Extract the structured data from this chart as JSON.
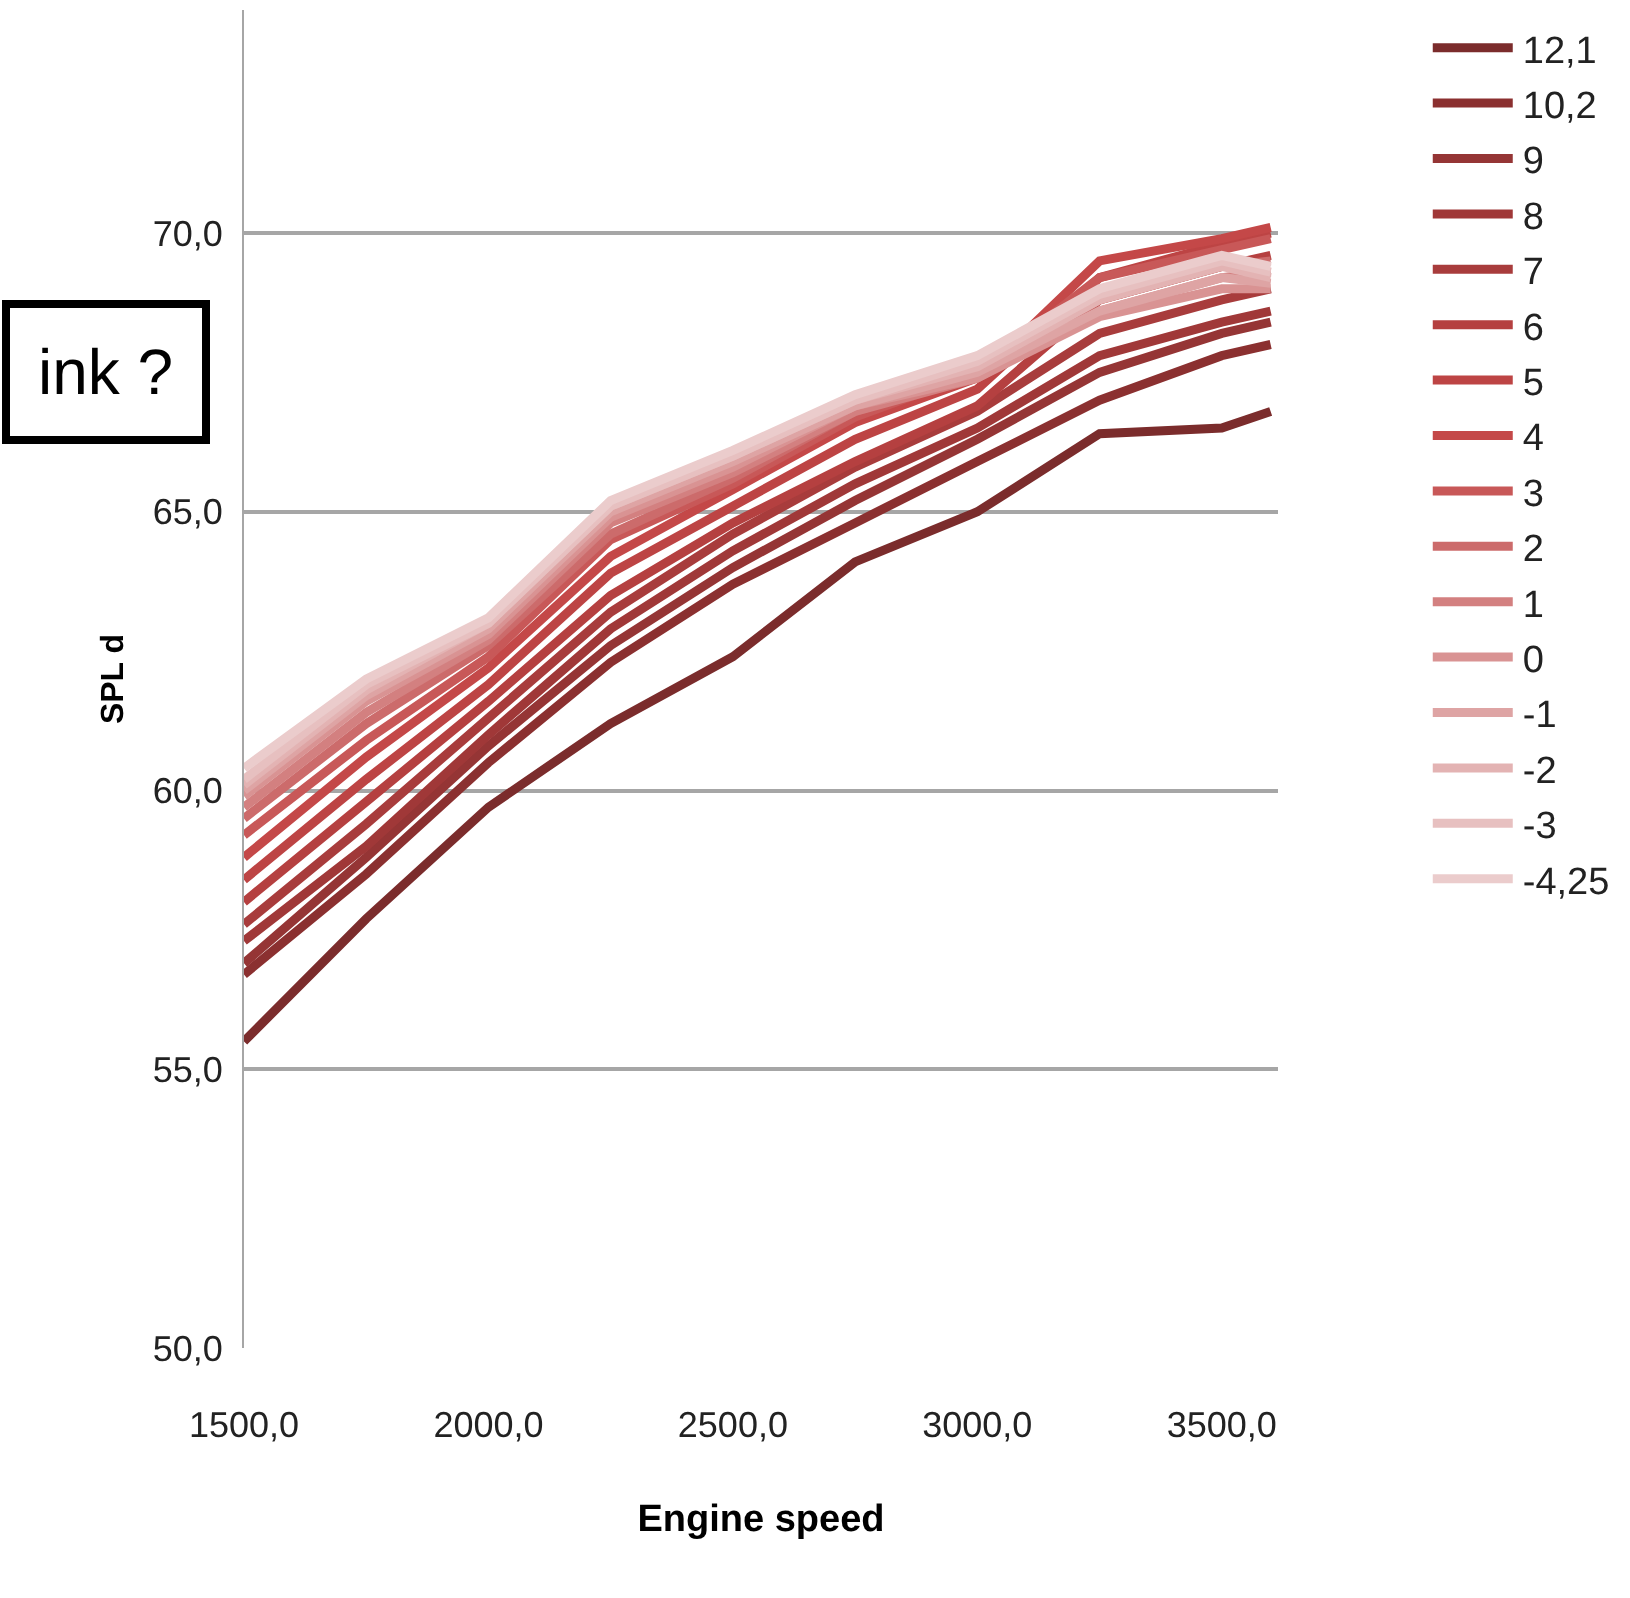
{
  "chart_data": {
    "type": "line",
    "xlabel": "Engine speed",
    "ylabel": "SPL d",
    "annotations": [
      "ink ?"
    ],
    "x": [
      1500,
      1750,
      2000,
      2250,
      2500,
      2750,
      3000,
      3250,
      3500,
      3600
    ],
    "xlim": [
      1500,
      3615
    ],
    "ylim": [
      50,
      74
    ],
    "xticks": [
      {
        "value": 1500,
        "label": "1500,0"
      },
      {
        "value": 2000,
        "label": "2000,0"
      },
      {
        "value": 2500,
        "label": "2500,0"
      },
      {
        "value": 3000,
        "label": "3000,0"
      },
      {
        "value": 3500,
        "label": "3500,0"
      }
    ],
    "yticks": [
      {
        "value": 50,
        "label": "50,0"
      },
      {
        "value": 55,
        "label": "55,0"
      },
      {
        "value": 60,
        "label": "60,0"
      },
      {
        "value": 65,
        "label": "65,0"
      },
      {
        "value": 70,
        "label": "70,0"
      }
    ],
    "grid": "y",
    "legend": "right",
    "marker": "none",
    "line_style": "solid",
    "series": [
      {
        "name": "12,1",
        "color": "#7b2c2c",
        "values": [
          55.5,
          57.7,
          59.7,
          61.2,
          62.4,
          64.1,
          65.0,
          66.4,
          66.5,
          66.8
        ]
      },
      {
        "name": "10,2",
        "color": "#8b3030",
        "values": [
          56.7,
          58.5,
          60.5,
          62.3,
          63.7,
          64.8,
          65.9,
          67.0,
          67.8,
          68.0
        ]
      },
      {
        "name": "9",
        "color": "#953535",
        "values": [
          56.9,
          58.8,
          60.8,
          62.6,
          64.0,
          65.2,
          66.3,
          67.5,
          68.2,
          68.4
        ]
      },
      {
        "name": "8",
        "color": "#a03838",
        "values": [
          57.3,
          59.0,
          61.0,
          62.9,
          64.3,
          65.5,
          66.5,
          67.8,
          68.4,
          68.6
        ]
      },
      {
        "name": "7",
        "color": "#a83c3c",
        "values": [
          57.6,
          59.4,
          61.3,
          63.2,
          64.6,
          65.8,
          66.8,
          68.2,
          68.8,
          69.0
        ]
      },
      {
        "name": "6",
        "color": "#b54040",
        "values": [
          58.0,
          59.8,
          61.6,
          63.5,
          64.8,
          65.9,
          66.9,
          68.8,
          69.4,
          69.6
        ]
      },
      {
        "name": "5",
        "color": "#bd4444",
        "values": [
          58.4,
          60.2,
          61.9,
          63.9,
          65.1,
          66.3,
          67.2,
          69.2,
          69.8,
          70.0
        ]
      },
      {
        "name": "4",
        "color": "#c44848",
        "values": [
          58.8,
          60.6,
          62.2,
          64.2,
          65.4,
          66.6,
          67.4,
          69.5,
          69.9,
          70.1
        ]
      },
      {
        "name": "3",
        "color": "#c85858",
        "values": [
          59.2,
          60.9,
          62.4,
          64.5,
          65.5,
          66.7,
          67.5,
          69.2,
          69.7,
          69.9
        ]
      },
      {
        "name": "2",
        "color": "#cc6b6b",
        "values": [
          59.5,
          61.2,
          62.6,
          64.6,
          65.6,
          66.8,
          67.5,
          68.8,
          69.4,
          69.5
        ]
      },
      {
        "name": "1",
        "color": "#d38080",
        "values": [
          59.7,
          61.4,
          62.7,
          64.8,
          65.7,
          66.8,
          67.4,
          68.6,
          69.2,
          69.3
        ]
      },
      {
        "name": "0",
        "color": "#d99393",
        "values": [
          59.9,
          61.6,
          62.8,
          64.9,
          65.8,
          66.9,
          67.4,
          68.5,
          69.0,
          69.0
        ]
      },
      {
        "name": "-1",
        "color": "#dea4a4",
        "values": [
          60.0,
          61.7,
          62.9,
          65.0,
          65.9,
          66.9,
          67.5,
          68.6,
          69.2,
          69.1
        ]
      },
      {
        "name": "-2",
        "color": "#e3b3b3",
        "values": [
          60.1,
          61.8,
          63.0,
          65.1,
          66.0,
          67.0,
          67.6,
          68.8,
          69.4,
          69.2
        ]
      },
      {
        "name": "-3",
        "color": "#e7c0c0",
        "values": [
          60.2,
          61.9,
          63.0,
          65.1,
          66.0,
          67.0,
          67.7,
          68.9,
          69.5,
          69.3
        ]
      },
      {
        "name": "-4,25",
        "color": "#ebcccc",
        "values": [
          60.4,
          62.0,
          63.1,
          65.2,
          66.1,
          67.1,
          67.8,
          69.0,
          69.6,
          69.4
        ]
      }
    ]
  }
}
